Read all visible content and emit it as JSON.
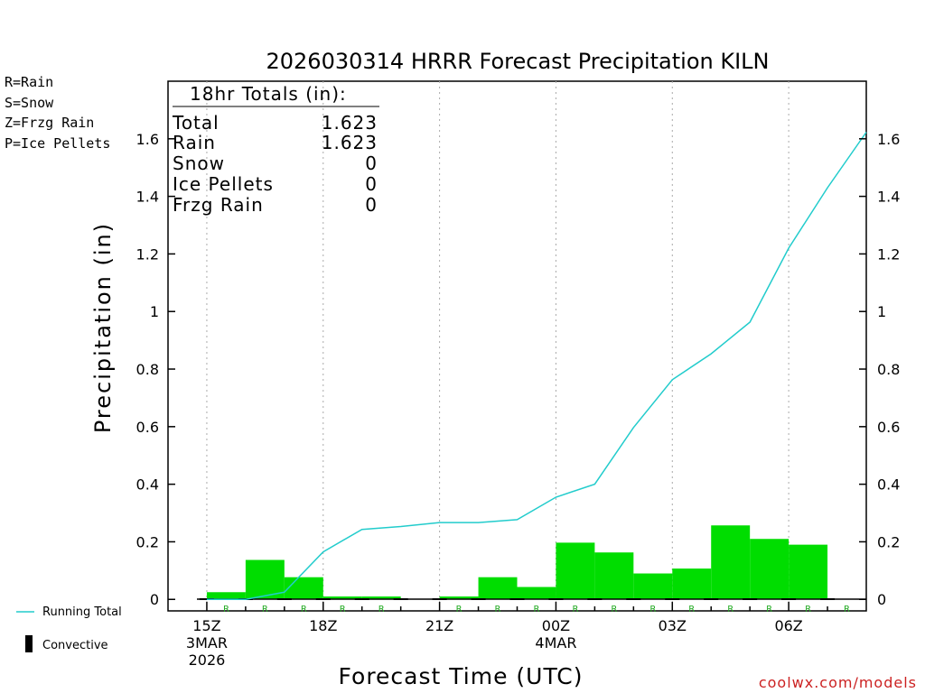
{
  "title": "2026030314 HRRR Forecast Precipitation KILN",
  "legend_types": [
    {
      "label": "R=Rain",
      "color": "#00cc00"
    },
    {
      "label": "S=Snow",
      "color": "#3333ee"
    },
    {
      "label": "Z=Frzg Rain",
      "color": "#ee8833"
    },
    {
      "label": "P=Ice Pellets",
      "color": "#ee3399"
    }
  ],
  "totals_box": {
    "header": "18hr Totals (in):",
    "rows": [
      {
        "label": "Total",
        "value": "1.623"
      },
      {
        "label": "Rain",
        "value": "1.623"
      },
      {
        "label": "Snow",
        "value": "0"
      },
      {
        "label": "Ice Pellets",
        "value": "0"
      },
      {
        "label": "Frzg Rain",
        "value": "0"
      }
    ]
  },
  "bottom_legend": {
    "running_total_label": "Running Total",
    "convective_label": "Convective"
  },
  "footer": "coolwx.com/models",
  "colors": {
    "bar": "#00dd00",
    "line": "#22cccc",
    "grid": "#aaaaaa"
  },
  "chart_data": {
    "type": "bar",
    "title": "2026030314 HRRR Forecast Precipitation KILN",
    "xlabel": "Forecast Time (UTC)",
    "ylabel": "Precipitation (in)",
    "ylim": [
      -0.04,
      1.8
    ],
    "xlim": [
      14.0,
      32.0
    ],
    "grid": "vertical dotted at major ticks",
    "yticks": [
      0,
      0.2,
      0.4,
      0.6,
      0.8,
      1,
      1.2,
      1.4,
      1.6
    ],
    "ytick_labels": [
      "0",
      "0.2",
      "0.4",
      "0.6",
      "0.8",
      "1",
      "1.2",
      "1.4",
      "1.6"
    ],
    "xticks": [
      {
        "x": 15,
        "lines": [
          "15Z",
          "3MAR",
          "2026"
        ]
      },
      {
        "x": 18,
        "lines": [
          "18Z"
        ]
      },
      {
        "x": 21,
        "lines": [
          "21Z"
        ]
      },
      {
        "x": 24,
        "lines": [
          "00Z",
          "4MAR"
        ]
      },
      {
        "x": 27,
        "lines": [
          "03Z"
        ]
      },
      {
        "x": 30,
        "lines": [
          "06Z"
        ]
      }
    ],
    "series": [
      {
        "name": "Hourly Precipitation",
        "type": "bar",
        "x": [
          16,
          17,
          18,
          19,
          20,
          21,
          22,
          23,
          24,
          25,
          26,
          27,
          28,
          29,
          30,
          31,
          32
        ],
        "values": [
          0.025,
          0.137,
          0.077,
          0.01,
          0.01,
          0.0,
          0.01,
          0.077,
          0.043,
          0.197,
          0.163,
          0.09,
          0.107,
          0.257,
          0.21,
          0.19,
          0.0
        ],
        "type_marks": [
          "R",
          "R",
          "R",
          "R",
          "R",
          "",
          "R",
          "R",
          "R",
          "R",
          "R",
          "R",
          "R",
          "R",
          "R",
          "R",
          "R"
        ]
      },
      {
        "name": "Running Total",
        "type": "line",
        "x": [
          15,
          16,
          17,
          18,
          19,
          20,
          21,
          22,
          23,
          24,
          25,
          26,
          27,
          28,
          29,
          30,
          31,
          32
        ],
        "values": [
          0.0,
          0.0,
          0.025,
          0.165,
          0.243,
          0.253,
          0.267,
          0.267,
          0.277,
          0.355,
          0.4,
          0.597,
          0.763,
          0.853,
          0.963,
          1.22,
          1.43,
          1.623
        ]
      }
    ]
  }
}
